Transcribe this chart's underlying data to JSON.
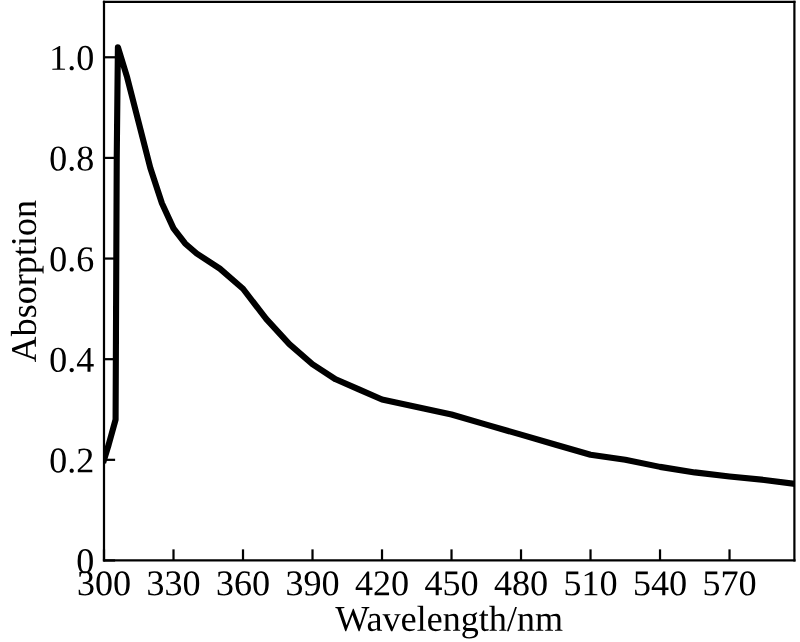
{
  "chart_data": {
    "type": "line",
    "xlabel": "Wavelength/nm",
    "ylabel": "Absorption",
    "x": [
      300,
      302,
      305,
      305.5,
      306,
      310,
      315,
      320,
      325,
      330,
      335,
      340,
      350,
      360,
      370,
      380,
      390,
      400,
      410,
      420,
      435,
      450,
      465,
      480,
      495,
      510,
      525,
      540,
      555,
      570,
      585,
      597
    ],
    "series": [
      {
        "color": "#000000",
        "values": [
          0.2,
          0.23,
          0.28,
          0.8,
          1.02,
          0.96,
          0.87,
          0.78,
          0.71,
          0.66,
          0.63,
          0.61,
          0.58,
          0.54,
          0.48,
          0.43,
          0.39,
          0.36,
          0.34,
          0.32,
          0.305,
          0.29,
          0.27,
          0.25,
          0.23,
          0.21,
          0.2,
          0.186,
          0.175,
          0.167,
          0.16,
          0.153
        ]
      }
    ],
    "xlim": [
      300,
      598
    ],
    "ylim": [
      0,
      1.11
    ],
    "xticks": [
      300,
      330,
      360,
      390,
      420,
      450,
      480,
      510,
      540,
      570
    ],
    "yticks": [
      0,
      0.2,
      0.4,
      0.6,
      0.8,
      {
        "value": 1,
        "label": "1.0"
      }
    ],
    "grid": false,
    "legend": false,
    "marker": "none",
    "line_style": "solid"
  }
}
